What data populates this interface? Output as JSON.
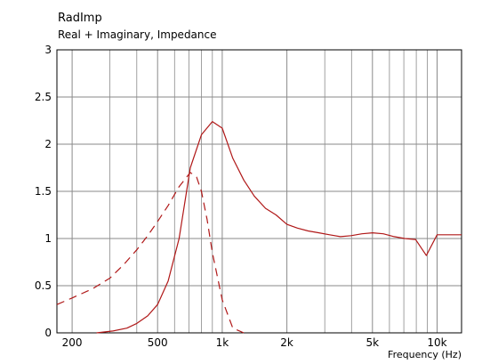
{
  "chart_data": {
    "type": "line",
    "title": "RadImp",
    "subtitle": "Real + Imaginary, Impedance",
    "xlabel": "Frequency  (Hz)",
    "ylabel": "",
    "xscale": "log",
    "xlim": [
      170,
      13000
    ],
    "ylim": [
      0,
      3
    ],
    "grid": true,
    "yticks": [
      0,
      0.5,
      1,
      1.5,
      2,
      2.5,
      3
    ],
    "yticklabels": [
      "0",
      "0.5",
      "1",
      "1.5",
      "2",
      "2.5",
      "3"
    ],
    "xticks": [
      200,
      500,
      1000,
      2000,
      5000,
      10000
    ],
    "xticklabels": [
      "200",
      "500",
      "1k",
      "2k",
      "5k",
      "10k"
    ],
    "xminorgrid": [
      300,
      400,
      600,
      700,
      800,
      900,
      3000,
      4000,
      6000,
      7000,
      8000,
      9000
    ],
    "colors": {
      "series": "#b01818",
      "grid": "#8a8a8a",
      "axis": "#000000"
    },
    "series": [
      {
        "style": "solid",
        "x": [
          260,
          310,
          360,
          400,
          450,
          500,
          560,
          630,
          710,
          800,
          900,
          1000,
          1120,
          1260,
          1410,
          1590,
          1780,
          2000,
          2240,
          2510,
          2820,
          3160,
          3550,
          3980,
          4470,
          5010,
          5620,
          6310,
          7080,
          7940,
          8910,
          10000,
          11200,
          12000,
          13000
        ],
        "y": [
          0.0,
          0.02,
          0.05,
          0.1,
          0.18,
          0.3,
          0.55,
          1.0,
          1.75,
          2.1,
          2.24,
          2.17,
          1.85,
          1.62,
          1.45,
          1.32,
          1.25,
          1.15,
          1.11,
          1.08,
          1.06,
          1.04,
          1.02,
          1.03,
          1.05,
          1.06,
          1.05,
          1.02,
          1.0,
          0.99,
          0.82,
          1.04,
          1.04,
          1.04,
          1.04
        ]
      },
      {
        "style": "dashed",
        "x": [
          170,
          200,
          250,
          300,
          350,
          400,
          450,
          500,
          560,
          630,
          710,
          760,
          800,
          850,
          900,
          1000,
          1120,
          1260
        ],
        "y": [
          0.3,
          0.37,
          0.47,
          0.58,
          0.73,
          0.88,
          1.03,
          1.18,
          1.35,
          1.55,
          1.7,
          1.65,
          1.5,
          1.2,
          0.85,
          0.35,
          0.05,
          0.0
        ]
      }
    ]
  }
}
